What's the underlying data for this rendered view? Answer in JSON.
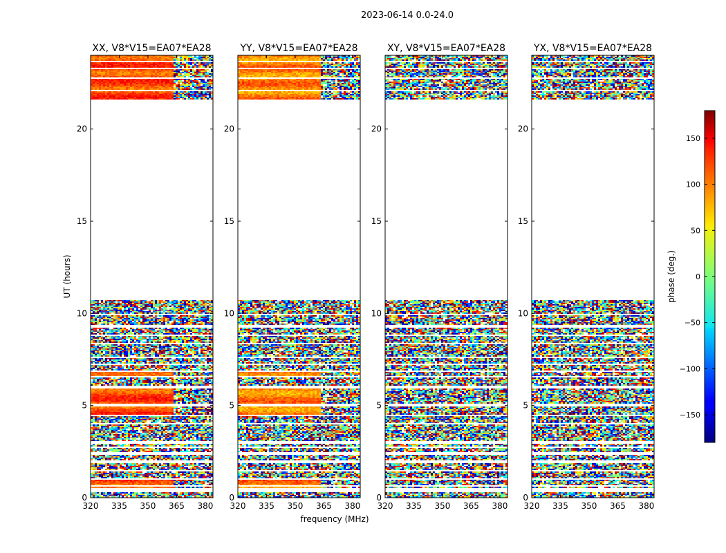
{
  "figure": {
    "suptitle": "2023-06-14 0.0-24.0",
    "xlabel": "frequency (MHz)",
    "ylabel": "UT (hours)"
  },
  "chart_data": {
    "type": "heatmap",
    "title": "2023-06-14 0.0-24.0",
    "xlabel": "frequency (MHz)",
    "ylabel": "UT (hours)",
    "xlim": [
      320,
      384
    ],
    "ylim": [
      0,
      24
    ],
    "xticks": [
      320,
      335,
      350,
      365,
      380
    ],
    "yticks": [
      0,
      5,
      10,
      15,
      20
    ],
    "coverage_ut_hours": [
      [
        0.0,
        0.3
      ],
      [
        0.5,
        0.6
      ],
      [
        0.7,
        1.0
      ],
      [
        1.05,
        1.45
      ],
      [
        1.5,
        1.9
      ],
      [
        2.0,
        2.35
      ],
      [
        2.5,
        2.7
      ],
      [
        2.8,
        2.95
      ],
      [
        3.1,
        3.65
      ],
      [
        3.7,
        4.0
      ],
      [
        4.05,
        4.45
      ],
      [
        4.5,
        4.95
      ],
      [
        5.1,
        5.3
      ],
      [
        5.35,
        5.45
      ],
      [
        5.5,
        5.95
      ],
      [
        6.05,
        6.5
      ],
      [
        6.6,
        6.85
      ],
      [
        6.9,
        7.2
      ],
      [
        7.3,
        7.55
      ],
      [
        7.65,
        8.3
      ],
      [
        8.4,
        8.75
      ],
      [
        8.85,
        9.25
      ],
      [
        9.35,
        9.9
      ],
      [
        10.0,
        10.75
      ],
      [
        21.6,
        22.05
      ],
      [
        22.1,
        22.75
      ],
      [
        22.8,
        23.25
      ],
      [
        23.35,
        23.6
      ],
      [
        23.7,
        24.0
      ]
    ],
    "series": [
      {
        "name": "XX, V8*V15=EA07*EA28",
        "coherent_ut_hours": [
          [
            0.5,
            1.0
          ],
          [
            4.5,
            4.95
          ],
          [
            5.1,
            5.95
          ],
          [
            6.55,
            6.85
          ],
          [
            21.6,
            24.0
          ]
        ],
        "coherent_phase_deg": 110,
        "coherent_until_mhz": 363
      },
      {
        "name": "YY, V8*V15=EA07*EA28",
        "coherent_ut_hours": [
          [
            0.5,
            1.0
          ],
          [
            4.5,
            4.95
          ],
          [
            5.1,
            5.95
          ],
          [
            6.55,
            6.85
          ],
          [
            21.6,
            24.0
          ]
        ],
        "coherent_phase_deg": 90,
        "coherent_until_mhz": 363
      },
      {
        "name": "XY, V8*V15=EA07*EA28",
        "coherent_ut_hours": [],
        "coherent_phase_deg": 0,
        "coherent_until_mhz": 320
      },
      {
        "name": "YX, V8*V15=EA07*EA28",
        "coherent_ut_hours": [],
        "coherent_phase_deg": 0,
        "coherent_until_mhz": 320
      }
    ],
    "colorbar": {
      "label": "phase (deg.)",
      "range": [
        -180,
        180
      ],
      "ticks": [
        150,
        100,
        50,
        0,
        -50,
        -100,
        -150
      ],
      "tick_labels": [
        "150",
        "100",
        "50",
        "0",
        "−50",
        "−100",
        "−150"
      ],
      "colormap": "jet"
    }
  }
}
